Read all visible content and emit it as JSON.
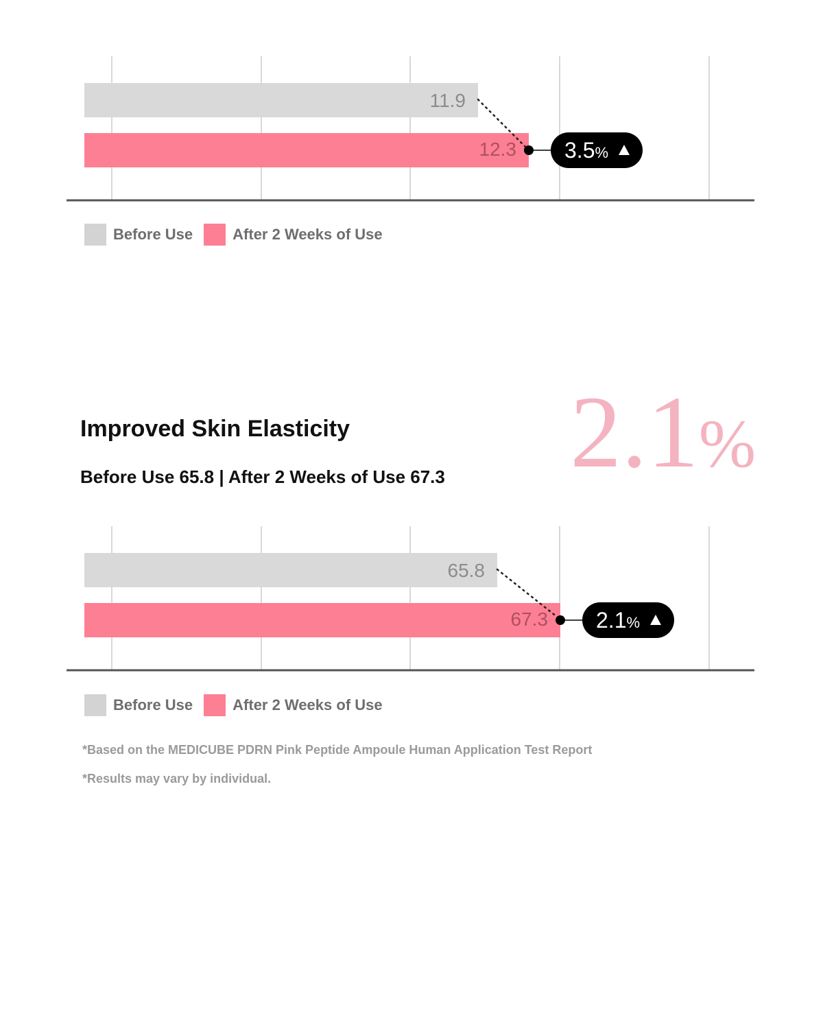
{
  "chart_data": [
    {
      "type": "bar",
      "orientation": "horizontal",
      "series": [
        {
          "name": "Before Use",
          "values": [
            11.9
          ]
        },
        {
          "name": "After 2 Weeks of Use",
          "values": [
            12.3
          ]
        }
      ],
      "value_labels": [
        "11.9",
        "12.3"
      ],
      "change_label": {
        "value": "3.5",
        "unit": "%",
        "arrow": "▲"
      },
      "grid": true,
      "legend": "bottom-left"
    },
    {
      "type": "bar",
      "orientation": "horizontal",
      "series": [
        {
          "name": "Before Use",
          "values": [
            65.8
          ]
        },
        {
          "name": "After 2 Weeks of Use",
          "values": [
            67.3
          ]
        }
      ],
      "value_labels": [
        "65.8",
        "67.3"
      ],
      "change_label": {
        "value": "2.1",
        "unit": "%",
        "arrow": "▲"
      },
      "grid": true,
      "legend": "bottom-left"
    }
  ],
  "section2": {
    "title": "Improved Skin Elasticity",
    "subtitle": "Before Use 65.8 | After 2 Weeks of Use 67.3",
    "big_stat_number": "2.1",
    "big_stat_unit": "%"
  },
  "legend": {
    "before_label": "Before Use",
    "after_label": "After 2 Weeks of Use"
  },
  "footnotes": [
    "*Based on the MEDICUBE PDRN Pink Peptide Ampoule Human Application Test Report",
    "*Results may vary by individual."
  ],
  "colors": {
    "before": "#d9d9d9",
    "after": "#fd7f93",
    "badge": "#000000",
    "big_stat": "#f4b3c0",
    "axis": "#555555",
    "grid": "#bdbdbd"
  }
}
